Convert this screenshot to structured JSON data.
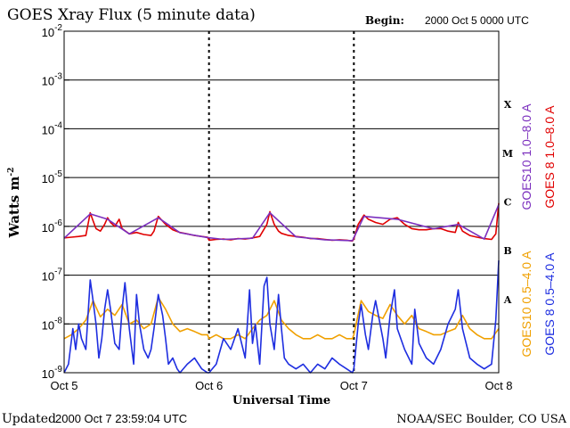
{
  "chart_data": {
    "type": "line",
    "title": "GOES Xray Flux (5 minute data)",
    "begin_label": "Begin:",
    "begin_value": "2000 Oct 5 0000 UTC",
    "xlabel": "Universal Time",
    "ylabel": "Watts m",
    "ylabel_superscript": "-2",
    "yscale": "log",
    "ylim": [
      1e-09,
      0.01
    ],
    "xlim": [
      0,
      3
    ],
    "x_ticks": [
      {
        "value": 0,
        "label": "Oct 5"
      },
      {
        "value": 1,
        "label": "Oct 6"
      },
      {
        "value": 2,
        "label": "Oct 7"
      },
      {
        "value": 3,
        "label": "Oct 8"
      }
    ],
    "y_ticks": [
      {
        "exp": -2,
        "base": "10",
        "sup": "-2"
      },
      {
        "exp": -3,
        "base": "10",
        "sup": "-3"
      },
      {
        "exp": -4,
        "base": "10",
        "sup": "-4"
      },
      {
        "exp": -5,
        "base": "10",
        "sup": "-5"
      },
      {
        "exp": -6,
        "base": "10",
        "sup": "-6"
      },
      {
        "exp": -7,
        "base": "10",
        "sup": "-7"
      },
      {
        "exp": -8,
        "base": "10",
        "sup": "-8"
      },
      {
        "exp": -9,
        "base": "10",
        "sup": "-9"
      }
    ],
    "flare_classes": [
      {
        "label": "X",
        "exp": -3.5
      },
      {
        "label": "M",
        "exp": -4.5
      },
      {
        "label": "C",
        "exp": -5.5
      },
      {
        "label": "B",
        "exp": -6.5
      },
      {
        "label": "A",
        "exp": -7.5
      }
    ],
    "legend": [
      {
        "text": "GOES10 1.0–8.0 A",
        "color": "#7b2fbe",
        "group": "long"
      },
      {
        "text": "GOES 8 1.0–8.0 A",
        "color": "#e00000",
        "group": "long"
      },
      {
        "text": "GOES10 0.5–4.0 A",
        "color": "#f0a000",
        "group": "short"
      },
      {
        "text": "GOES 8 0.5–4.0 A",
        "color": "#1e2ee0",
        "group": "short"
      }
    ],
    "series": [
      {
        "name": "GOES 8 1.0–8.0 A",
        "color": "#e00000",
        "x": [
          0,
          0.05,
          0.1,
          0.15,
          0.18,
          0.2,
          0.22,
          0.25,
          0.28,
          0.3,
          0.32,
          0.35,
          0.38,
          0.4,
          0.45,
          0.5,
          0.55,
          0.6,
          0.62,
          0.65,
          0.7,
          0.75,
          0.8,
          0.85,
          0.9,
          0.95,
          0.99,
          1.0,
          1.05,
          1.1,
          1.15,
          1.2,
          1.25,
          1.3,
          1.35,
          1.4,
          1.42,
          1.45,
          1.48,
          1.5,
          1.55,
          1.6,
          1.65,
          1.7,
          1.75,
          1.8,
          1.85,
          1.9,
          1.95,
          1.99,
          2.0,
          2.03,
          2.07,
          2.1,
          2.15,
          2.2,
          2.25,
          2.3,
          2.35,
          2.4,
          2.45,
          2.5,
          2.55,
          2.6,
          2.65,
          2.7,
          2.72,
          2.75,
          2.8,
          2.85,
          2.9,
          2.95,
          2.98,
          3.0
        ],
        "y": [
          5.8e-07,
          6e-07,
          6.2e-07,
          6.5e-07,
          1.9e-06,
          1.3e-06,
          9e-07,
          8e-07,
          1.1e-06,
          1.5e-06,
          1.2e-06,
          1e-06,
          1.4e-06,
          9e-07,
          7e-07,
          7.5e-07,
          6.8e-07,
          6.5e-07,
          8e-07,
          1.6e-06,
          1.1e-06,
          8.5e-07,
          7.5e-07,
          7e-07,
          6.5e-07,
          6.2e-07,
          6e-07,
          5.2e-07,
          5.4e-07,
          5.5e-07,
          5.3e-07,
          5.6e-07,
          5.5e-07,
          5.8e-07,
          6.2e-07,
          1.1e-06,
          2e-06,
          1.1e-06,
          8e-07,
          7.2e-07,
          6.5e-07,
          6.2e-07,
          6e-07,
          5.6e-07,
          5.6e-07,
          5.4e-07,
          5.2e-07,
          5.3e-07,
          5.2e-07,
          5e-07,
          5.5e-07,
          1.1e-06,
          1.7e-06,
          1.4e-06,
          1.2e-06,
          1.1e-06,
          1.4e-06,
          1.5e-06,
          1.1e-06,
          9e-07,
          8.5e-07,
          8.5e-07,
          9e-07,
          9e-07,
          8e-07,
          7.5e-07,
          1.2e-06,
          8e-07,
          6.5e-07,
          6e-07,
          5.6e-07,
          5.4e-07,
          7e-07,
          3e-06
        ]
      },
      {
        "name": "GOES10 1.0–8.0 A",
        "color": "#7b2fbe",
        "x": [
          0,
          0.18,
          0.3,
          0.45,
          0.65,
          0.8,
          0.99,
          1.1,
          1.3,
          1.42,
          1.6,
          1.8,
          1.99,
          2.07,
          2.3,
          2.55,
          2.72,
          2.9,
          3.0
        ],
        "y": [
          5.7e-07,
          1.8e-06,
          1.4e-06,
          7e-07,
          1.5e-06,
          7.4e-07,
          5.9e-07,
          5.4e-07,
          5.7e-07,
          1.9e-06,
          6.1e-07,
          5.3e-07,
          5.1e-07,
          1.6e-06,
          1.4e-06,
          8.9e-07,
          1.1e-06,
          5.5e-07,
          2.8e-06
        ]
      },
      {
        "name": "GOES10 0.5–4.0 A",
        "color": "#f0a000",
        "x": [
          0,
          0.05,
          0.1,
          0.15,
          0.2,
          0.25,
          0.3,
          0.35,
          0.4,
          0.45,
          0.5,
          0.55,
          0.6,
          0.65,
          0.7,
          0.75,
          0.8,
          0.85,
          0.9,
          0.95,
          0.99,
          1.0,
          1.05,
          1.1,
          1.15,
          1.2,
          1.25,
          1.3,
          1.35,
          1.4,
          1.45,
          1.5,
          1.55,
          1.6,
          1.65,
          1.7,
          1.75,
          1.8,
          1.85,
          1.9,
          1.95,
          1.99,
          2.0,
          2.05,
          2.1,
          2.15,
          2.2,
          2.25,
          2.3,
          2.35,
          2.4,
          2.45,
          2.5,
          2.55,
          2.6,
          2.65,
          2.7,
          2.75,
          2.8,
          2.85,
          2.9,
          2.95,
          3.0
        ],
        "y": [
          5e-09,
          6e-09,
          8e-09,
          1.2e-08,
          3e-08,
          1.4e-08,
          2e-08,
          1.5e-08,
          2.5e-08,
          1e-08,
          1.2e-08,
          8e-09,
          1e-08,
          3.5e-08,
          2e-08,
          1e-08,
          7e-09,
          8e-09,
          7e-09,
          6e-09,
          6e-09,
          5e-09,
          6e-09,
          5e-09,
          5e-09,
          6e-09,
          5e-09,
          8e-09,
          1.2e-08,
          1.5e-08,
          3e-08,
          1.2e-08,
          8e-09,
          6e-09,
          5e-09,
          5e-09,
          6e-09,
          5e-09,
          5e-09,
          6e-09,
          5e-09,
          5e-09,
          6e-09,
          3e-08,
          1.8e-08,
          1.5e-08,
          1.3e-08,
          2.5e-08,
          1.5e-08,
          1e-08,
          1.5e-08,
          8e-09,
          7e-09,
          6e-09,
          6e-09,
          7e-09,
          8e-09,
          1.5e-08,
          8e-09,
          6e-09,
          5e-09,
          5e-09,
          8e-09
        ]
      },
      {
        "name": "GOES 8 0.5–4.0 A",
        "color": "#1e2ee0",
        "x": [
          0,
          0.03,
          0.06,
          0.08,
          0.1,
          0.12,
          0.15,
          0.18,
          0.2,
          0.22,
          0.24,
          0.26,
          0.28,
          0.3,
          0.32,
          0.35,
          0.38,
          0.4,
          0.42,
          0.45,
          0.48,
          0.5,
          0.52,
          0.55,
          0.58,
          0.6,
          0.62,
          0.65,
          0.68,
          0.7,
          0.72,
          0.75,
          0.78,
          0.8,
          0.85,
          0.9,
          0.95,
          0.99,
          1.0,
          1.05,
          1.1,
          1.15,
          1.2,
          1.25,
          1.28,
          1.3,
          1.32,
          1.35,
          1.38,
          1.4,
          1.42,
          1.45,
          1.48,
          1.5,
          1.52,
          1.55,
          1.6,
          1.65,
          1.7,
          1.75,
          1.8,
          1.85,
          1.9,
          1.95,
          1.99,
          2.0,
          2.03,
          2.05,
          2.08,
          2.1,
          2.13,
          2.15,
          2.2,
          2.22,
          2.25,
          2.28,
          2.3,
          2.35,
          2.4,
          2.42,
          2.45,
          2.5,
          2.55,
          2.6,
          2.65,
          2.7,
          2.72,
          2.75,
          2.8,
          2.85,
          2.9,
          2.95,
          2.98,
          3.0
        ],
        "y": [
          1e-09,
          1.5e-09,
          8e-09,
          3e-09,
          1e-08,
          5e-09,
          3e-09,
          8e-08,
          3e-08,
          1e-08,
          2e-09,
          5e-09,
          2e-08,
          5e-08,
          2e-08,
          4e-09,
          3e-09,
          2e-08,
          7e-08,
          8e-09,
          1.5e-09,
          4e-08,
          1e-08,
          3e-09,
          2e-09,
          3e-09,
          8e-09,
          4e-08,
          1.5e-08,
          5e-09,
          1.5e-09,
          2e-09,
          1.2e-09,
          1e-09,
          1.5e-09,
          2e-09,
          1.2e-09,
          1e-09,
          1e-09,
          1.5e-09,
          5e-09,
          3e-09,
          8e-09,
          2e-09,
          5e-08,
          4e-09,
          1e-08,
          1.5e-09,
          6e-08,
          9e-08,
          1e-08,
          3e-09,
          4e-08,
          8e-09,
          2e-09,
          1.5e-09,
          1.2e-09,
          1.5e-09,
          1e-09,
          1.5e-09,
          1.2e-09,
          2e-09,
          1.5e-09,
          1.2e-09,
          1e-09,
          1.2e-09,
          1e-08,
          2.5e-08,
          6e-09,
          3e-09,
          1.5e-08,
          3e-08,
          5e-09,
          2e-09,
          1.5e-08,
          5e-08,
          8e-09,
          3e-09,
          1.5e-09,
          2e-08,
          4e-09,
          2e-09,
          1.5e-09,
          3e-09,
          1e-08,
          2e-08,
          5e-08,
          8e-09,
          2e-09,
          1.5e-09,
          1.2e-09,
          1.5e-09,
          1.2e-08,
          2e-07
        ]
      }
    ]
  },
  "footer": {
    "updated_label": "Updated",
    "updated_value": "2000 Oct  7 23:59:04 UTC",
    "credit": "NOAA/SEC Boulder, CO USA"
  }
}
